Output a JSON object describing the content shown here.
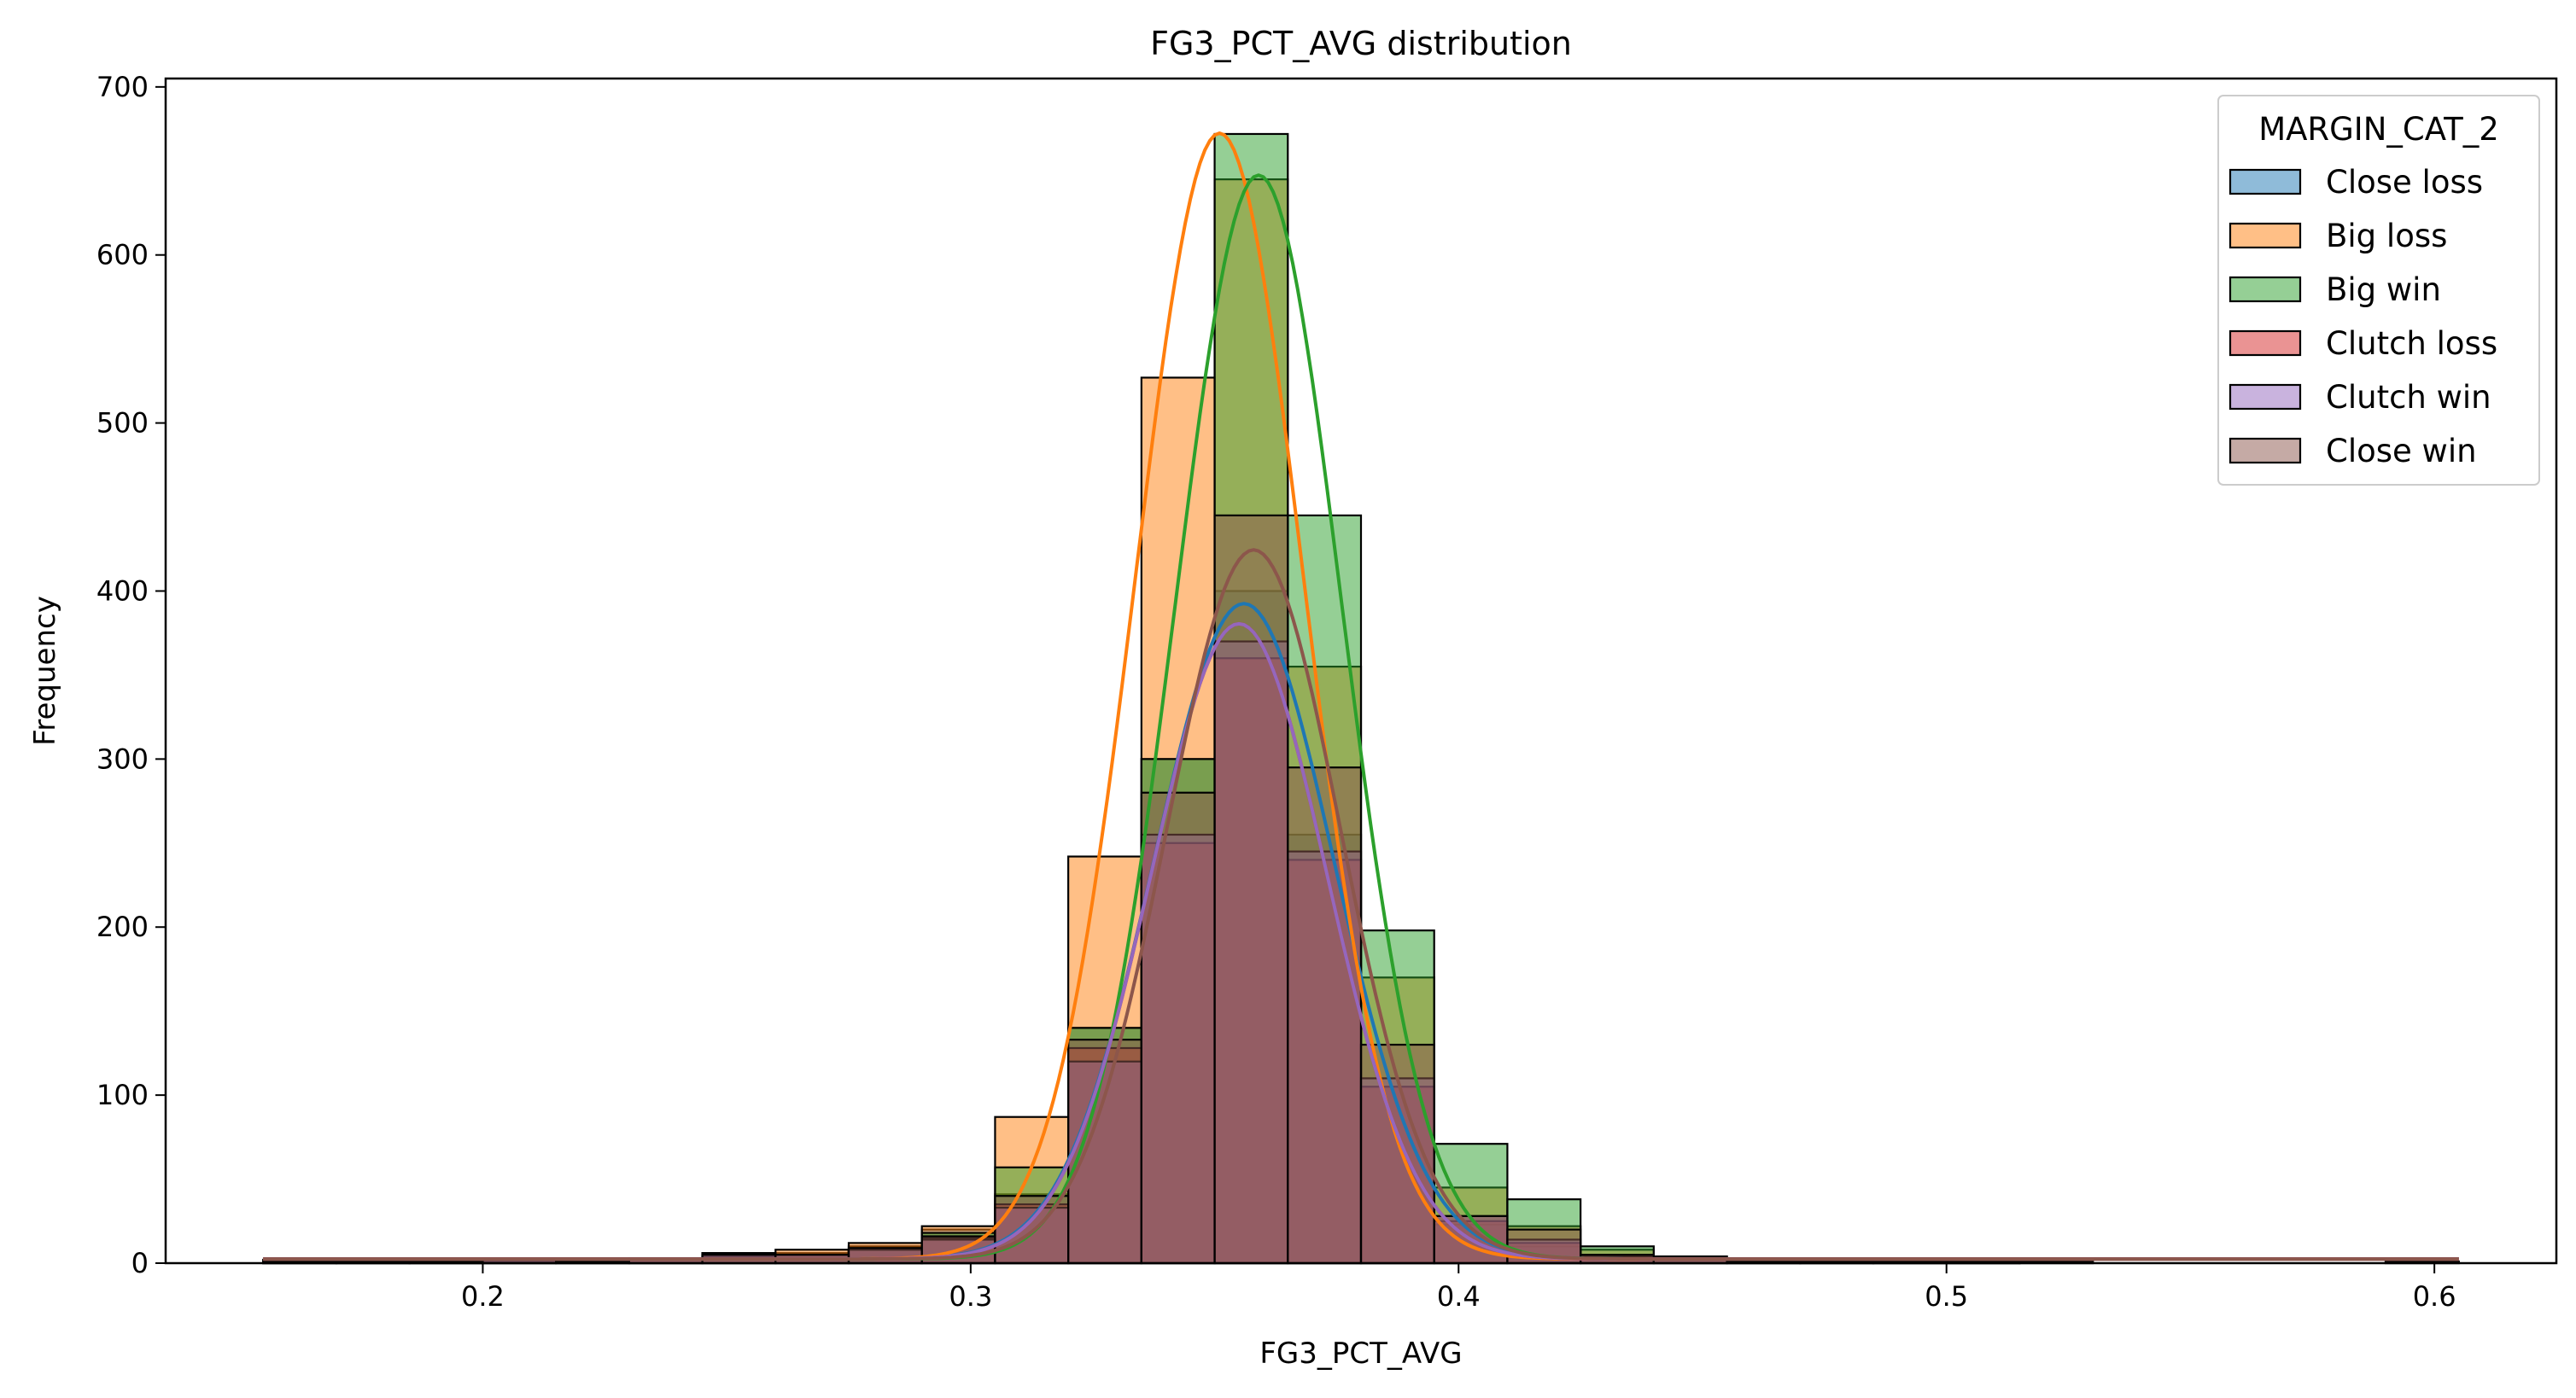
{
  "chart_data": {
    "type": "histogram",
    "title": "FG3_PCT_AVG distribution",
    "xlabel": "FG3_PCT_AVG",
    "ylabel": "Frequency",
    "xlim": [
      0.135,
      0.625
    ],
    "ylim": [
      0,
      705
    ],
    "xticks": [
      0.2,
      0.3,
      0.4,
      0.5,
      0.6
    ],
    "xtick_labels": [
      "0.2",
      "0.3",
      "0.4",
      "0.5",
      "0.6"
    ],
    "yticks": [
      0,
      100,
      200,
      300,
      400,
      500,
      600,
      700
    ],
    "ytick_labels": [
      "0",
      "100",
      "200",
      "300",
      "400",
      "500",
      "600",
      "700"
    ],
    "bin_edges": [
      0.155,
      0.17,
      0.185,
      0.2,
      0.215,
      0.23,
      0.245,
      0.26,
      0.275,
      0.29,
      0.305,
      0.32,
      0.335,
      0.35,
      0.365,
      0.38,
      0.395,
      0.41,
      0.425,
      0.44,
      0.455,
      0.47,
      0.485,
      0.5,
      0.515,
      0.53,
      0.545,
      0.56,
      0.575,
      0.59,
      0.605
    ],
    "legend": {
      "title": "MARGIN_CAT_2",
      "position": "upper right"
    },
    "series": [
      {
        "name": "Close loss",
        "color": "#1f77b4",
        "counts": [
          2,
          1,
          1,
          2,
          1,
          3,
          5,
          6,
          10,
          20,
          41,
          140,
          300,
          400,
          255,
          105,
          23,
          10,
          4,
          2,
          1,
          1,
          1,
          1,
          0,
          0,
          0,
          0,
          0,
          1
        ],
        "kde_peak": 390,
        "kde_mode": 0.356,
        "kde_sd": 0.0185
      },
      {
        "name": "Big loss",
        "color": "#ff7f0e",
        "counts": [
          2,
          1,
          2,
          3,
          1,
          3,
          6,
          8,
          12,
          22,
          87,
          242,
          527,
          645,
          355,
          170,
          45,
          22,
          8,
          4,
          2,
          1,
          1,
          1,
          1,
          0,
          0,
          0,
          0,
          0
        ],
        "kde_peak": 670,
        "kde_mode": 0.351,
        "kde_sd": 0.0172
      },
      {
        "name": "Big win",
        "color": "#2ca02c",
        "counts": [
          1,
          1,
          1,
          2,
          1,
          2,
          4,
          5,
          8,
          18,
          57,
          140,
          300,
          672,
          445,
          198,
          71,
          38,
          10,
          4,
          2,
          1,
          1,
          1,
          0,
          0,
          0,
          0,
          0,
          1
        ],
        "kde_peak": 645,
        "kde_mode": 0.359,
        "kde_sd": 0.017
      },
      {
        "name": "Clutch loss",
        "color": "#d62728",
        "counts": [
          1,
          1,
          2,
          1,
          1,
          2,
          4,
          5,
          8,
          15,
          35,
          128,
          250,
          360,
          240,
          105,
          25,
          12,
          4,
          2,
          1,
          1,
          1,
          1,
          1,
          0,
          0,
          0,
          0,
          0
        ],
        "kde_peak": 378,
        "kde_mode": 0.355,
        "kde_sd": 0.018
      },
      {
        "name": "Clutch win",
        "color": "#9467bd",
        "counts": [
          1,
          1,
          1,
          2,
          1,
          3,
          6,
          5,
          8,
          14,
          33,
          120,
          255,
          370,
          245,
          110,
          28,
          14,
          4,
          2,
          1,
          1,
          1,
          1,
          0,
          0,
          0,
          0,
          0,
          0
        ],
        "kde_peak": 378,
        "kde_mode": 0.355,
        "kde_sd": 0.018
      },
      {
        "name": "Close win",
        "color": "#8c564b",
        "counts": [
          1,
          1,
          1,
          2,
          1,
          3,
          5,
          5,
          9,
          16,
          40,
          133,
          280,
          445,
          295,
          130,
          28,
          20,
          5,
          2,
          1,
          1,
          1,
          1,
          0,
          0,
          0,
          0,
          0,
          0
        ],
        "kde_peak": 422,
        "kde_mode": 0.358,
        "kde_sd": 0.0178
      }
    ]
  }
}
